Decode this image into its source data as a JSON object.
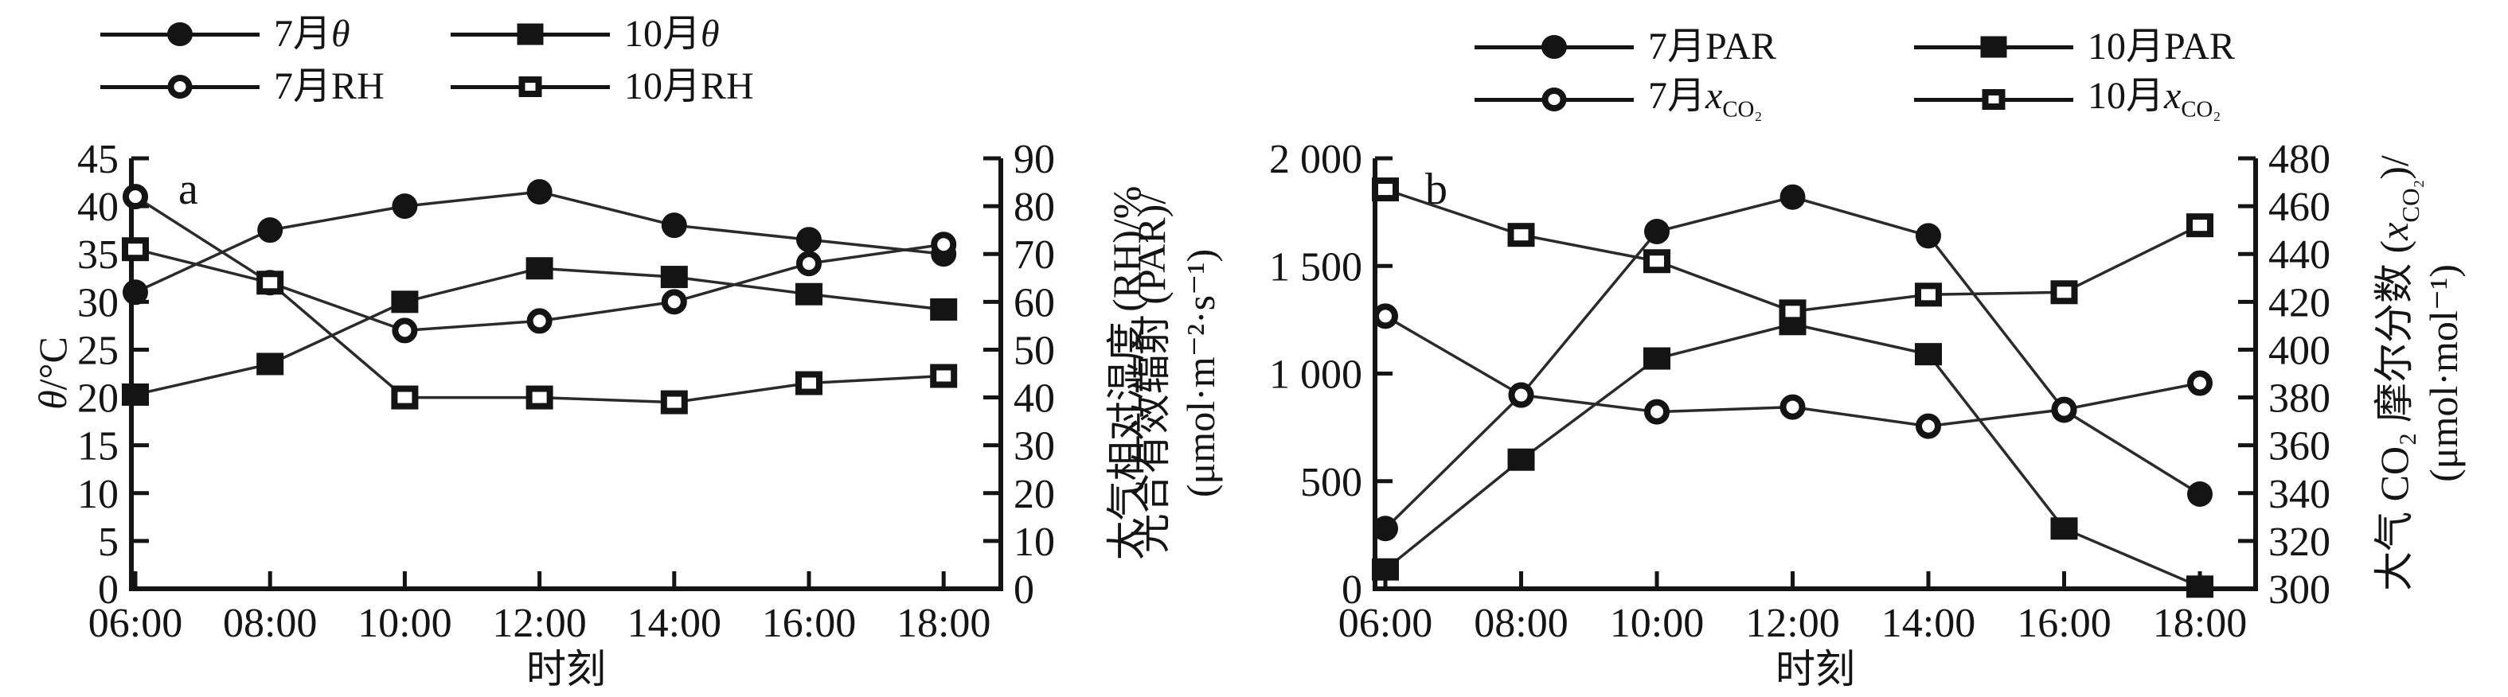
{
  "figure": {
    "background": "#ffffff",
    "ink_color": "#141414",
    "description": "Two-panel line figure: diurnal variation of meteorological variables in July and October"
  },
  "chart_data": [
    {
      "type": "line",
      "panel_label": "a",
      "x_title": "时刻",
      "categories": [
        "06:00",
        "08:00",
        "10:00",
        "12:00",
        "14:00",
        "16:00",
        "18:00"
      ],
      "grid": false,
      "legend_position": "top",
      "left_axis": {
        "min": 0,
        "max": 45,
        "step": 5,
        "tick_labels": [
          "0",
          "5",
          "10",
          "15",
          "20",
          "25",
          "30",
          "35",
          "40",
          "45"
        ],
        "title_lines": [
          [
            {
              "t": "θ",
              "i": true
            },
            {
              "t": "/°C"
            }
          ]
        ]
      },
      "right_axis": {
        "min": 0,
        "max": 90,
        "step": 10,
        "tick_labels": [
          "0",
          "10",
          "20",
          "30",
          "40",
          "50",
          "60",
          "70",
          "80",
          "90"
        ],
        "title_lines": [
          [
            {
              "t": "大气相对湿度 (RH)/%"
            }
          ]
        ]
      },
      "legend": {
        "items": [
          {
            "marker": "circle-filled",
            "label": "7月θ",
            "parts": [
              {
                "t": "7月"
              },
              {
                "t": "θ",
                "i": true
              }
            ]
          },
          {
            "marker": "square-filled",
            "label": "10月θ",
            "parts": [
              {
                "t": "10月"
              },
              {
                "t": "θ",
                "i": true
              }
            ]
          },
          {
            "marker": "circle-open",
            "label": "7月RH",
            "parts": [
              {
                "t": "7月RH"
              }
            ]
          },
          {
            "marker": "square-open",
            "label": "10月RH",
            "parts": [
              {
                "t": "10月RH"
              }
            ]
          }
        ]
      },
      "series": [
        {
          "name": "7月θ",
          "axis": "left",
          "marker": "circle-filled",
          "values": [
            31,
            37.5,
            40,
            41.5,
            38,
            36.5,
            35
          ]
        },
        {
          "name": "10月θ",
          "axis": "left",
          "marker": "square-filled",
          "values": [
            20.3,
            23.5,
            30,
            33.5,
            32.6,
            30.8,
            29.2
          ]
        },
        {
          "name": "7月RH",
          "axis": "right",
          "marker": "circle-open",
          "values": [
            82,
            64,
            54,
            56,
            60,
            68,
            72
          ]
        },
        {
          "name": "10月RH",
          "axis": "right",
          "marker": "square-open",
          "values": [
            71,
            64,
            40,
            40,
            39,
            43,
            44.5
          ]
        }
      ]
    },
    {
      "type": "line",
      "panel_label": "b",
      "x_title": "时刻",
      "categories": [
        "06:00",
        "08:00",
        "10:00",
        "12:00",
        "14:00",
        "16:00",
        "18:00"
      ],
      "grid": false,
      "legend_position": "top",
      "left_axis": {
        "min": 0,
        "max": 2000,
        "step": 500,
        "tick_labels": [
          "0",
          "500",
          "1 000",
          "1 500",
          "2 000"
        ],
        "title_lines": [
          [
            {
              "t": "光合有效辐射 (PAR)/"
            }
          ],
          [
            {
              "t": "(μmol·m⁻²·s⁻¹)"
            }
          ]
        ]
      },
      "right_axis": {
        "min": 300,
        "max": 480,
        "step": 20,
        "tick_labels": [
          "300",
          "320",
          "340",
          "360",
          "380",
          "400",
          "420",
          "440",
          "460",
          "480"
        ],
        "title_lines": [
          [
            {
              "t": "大气 CO₂ 摩尔分数 ("
            },
            {
              "t": "x",
              "i": true
            },
            {
              "t": "CO₂",
              "sub": true
            },
            {
              "t": ")/"
            }
          ],
          [
            {
              "t": "(μmol·mol⁻¹)"
            }
          ]
        ]
      },
      "legend": {
        "items": [
          {
            "marker": "circle-filled",
            "label": "7月PAR",
            "parts": [
              {
                "t": "7月PAR"
              }
            ]
          },
          {
            "marker": "square-filled",
            "label": "10月PAR",
            "parts": [
              {
                "t": "10月PAR"
              }
            ]
          },
          {
            "marker": "circle-open",
            "label": "7月xCO2",
            "parts": [
              {
                "t": "7月"
              },
              {
                "t": "x",
                "i": true
              },
              {
                "t": "CO₂",
                "sub": true
              }
            ]
          },
          {
            "marker": "square-open",
            "label": "10月xCO2",
            "parts": [
              {
                "t": "10月"
              },
              {
                "t": "x",
                "i": true
              },
              {
                "t": "CO₂",
                "sub": true
              }
            ]
          }
        ]
      },
      "series": [
        {
          "name": "7月PAR",
          "axis": "left",
          "marker": "circle-filled",
          "values": [
            280,
            900,
            1660,
            1820,
            1640,
            830,
            440
          ]
        },
        {
          "name": "10月PAR",
          "axis": "left",
          "marker": "square-filled",
          "values": [
            90,
            600,
            1070,
            1230,
            1090,
            280,
            10
          ]
        },
        {
          "name": "7月xCO2",
          "axis": "right",
          "marker": "circle-open",
          "values": [
            414,
            381,
            374,
            376,
            368,
            375,
            386
          ]
        },
        {
          "name": "10月xCO2",
          "axis": "right",
          "marker": "square-open",
          "values": [
            467,
            448,
            437,
            416,
            423,
            424,
            452
          ]
        }
      ]
    }
  ]
}
